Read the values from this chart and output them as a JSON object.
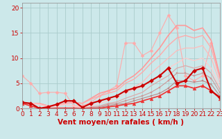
{
  "bg_color": "#cce8ea",
  "grid_color": "#aacccc",
  "xlabel": "Vent moyen/en rafales ( km/h )",
  "xlim": [
    0,
    23
  ],
  "ylim": [
    0,
    21
  ],
  "yticks": [
    0,
    5,
    10,
    15,
    20
  ],
  "xticks": [
    0,
    1,
    2,
    3,
    4,
    5,
    6,
    7,
    8,
    9,
    10,
    11,
    12,
    13,
    14,
    15,
    16,
    17,
    18,
    19,
    20,
    21,
    22,
    23
  ],
  "lines": [
    {
      "x": [
        0,
        1,
        2,
        3,
        4,
        5,
        6,
        7,
        8,
        9,
        10,
        11,
        12,
        13,
        14,
        15,
        16,
        17,
        18,
        19,
        20,
        21,
        22,
        23
      ],
      "y": [
        6.5,
        5.0,
        3.0,
        3.2,
        3.2,
        3.0,
        0.5,
        0.5,
        1.2,
        2.5,
        3.5,
        4.5,
        13.0,
        13.0,
        10.5,
        11.5,
        15.0,
        18.5,
        16.0,
        6.5,
        5.5,
        6.5,
        13.0,
        6.5
      ],
      "color": "#ffaaaa",
      "marker": "D",
      "lw": 0.8,
      "ms": 2.5
    },
    {
      "x": [
        0,
        1,
        2,
        3,
        4,
        5,
        6,
        7,
        8,
        9,
        10,
        11,
        12,
        13,
        14,
        15,
        16,
        17,
        18,
        19,
        20,
        21,
        22,
        23
      ],
      "y": [
        1.0,
        1.0,
        1.0,
        0.5,
        0.7,
        1.0,
        1.2,
        1.0,
        2.0,
        3.0,
        3.5,
        4.0,
        5.5,
        6.5,
        8.0,
        10.0,
        12.0,
        14.5,
        16.5,
        16.5,
        15.5,
        16.0,
        13.5,
        6.5
      ],
      "color": "#ff9999",
      "marker": null,
      "lw": 1.2,
      "ms": 0
    },
    {
      "x": [
        0,
        1,
        2,
        3,
        4,
        5,
        6,
        7,
        8,
        9,
        10,
        11,
        12,
        13,
        14,
        15,
        16,
        17,
        18,
        19,
        20,
        21,
        22,
        23
      ],
      "y": [
        1.0,
        1.0,
        1.0,
        0.5,
        0.7,
        1.0,
        1.2,
        1.0,
        1.8,
        2.5,
        3.0,
        3.5,
        5.0,
        5.8,
        7.2,
        9.0,
        10.5,
        12.5,
        14.0,
        14.5,
        14.0,
        14.5,
        12.0,
        6.0
      ],
      "color": "#ffaaaa",
      "marker": null,
      "lw": 1.0,
      "ms": 0
    },
    {
      "x": [
        0,
        1,
        2,
        3,
        4,
        5,
        6,
        7,
        8,
        9,
        10,
        11,
        12,
        13,
        14,
        15,
        16,
        17,
        18,
        19,
        20,
        21,
        22,
        23
      ],
      "y": [
        1.0,
        1.0,
        0.8,
        0.3,
        0.5,
        0.8,
        0.5,
        0.3,
        1.0,
        1.5,
        2.0,
        2.5,
        3.5,
        4.2,
        5.2,
        7.0,
        8.5,
        10.0,
        11.5,
        12.0,
        12.0,
        12.5,
        10.0,
        5.2
      ],
      "color": "#ffbbbb",
      "marker": null,
      "lw": 0.9,
      "ms": 0
    },
    {
      "x": [
        0,
        1,
        2,
        3,
        4,
        5,
        6,
        7,
        8,
        9,
        10,
        11,
        12,
        13,
        14,
        15,
        16,
        17,
        18,
        19,
        20,
        21,
        22,
        23
      ],
      "y": [
        1.0,
        1.0,
        0.8,
        0.3,
        0.5,
        0.8,
        0.5,
        0.0,
        0.5,
        1.0,
        1.5,
        2.0,
        3.0,
        3.7,
        4.2,
        5.5,
        6.5,
        8.0,
        9.0,
        10.0,
        9.5,
        10.0,
        8.0,
        4.2
      ],
      "color": "#ffcccc",
      "marker": null,
      "lw": 0.9,
      "ms": 0
    },
    {
      "x": [
        0,
        1,
        2,
        3,
        4,
        5,
        6,
        7,
        8,
        9,
        10,
        11,
        12,
        13,
        14,
        15,
        16,
        17,
        18,
        19,
        20,
        21,
        22,
        23
      ],
      "y": [
        1.0,
        1.0,
        0.0,
        0.0,
        0.2,
        0.2,
        0.2,
        0.0,
        0.3,
        0.5,
        1.0,
        1.3,
        2.0,
        2.6,
        3.2,
        4.5,
        5.5,
        6.5,
        8.0,
        8.5,
        8.0,
        8.5,
        7.0,
        3.8
      ],
      "color": "#ddaaaa",
      "marker": null,
      "lw": 0.9,
      "ms": 0
    },
    {
      "x": [
        0,
        1,
        2,
        3,
        4,
        5,
        6,
        7,
        8,
        9,
        10,
        11,
        12,
        13,
        14,
        15,
        16,
        17,
        18,
        19,
        20,
        21,
        22,
        23
      ],
      "y": [
        1.0,
        1.0,
        0.0,
        0.0,
        0.0,
        0.0,
        0.0,
        0.0,
        0.2,
        0.3,
        0.8,
        1.0,
        1.5,
        2.0,
        2.5,
        3.2,
        4.2,
        5.5,
        7.0,
        7.0,
        6.5,
        7.0,
        6.0,
        3.2
      ],
      "color": "#cc9999",
      "marker": "s",
      "lw": 0.8,
      "ms": 2.0
    },
    {
      "x": [
        0,
        1,
        2,
        3,
        4,
        5,
        6,
        7,
        8,
        9,
        10,
        11,
        12,
        13,
        14,
        15,
        16,
        17,
        18,
        19,
        20,
        21,
        22,
        23
      ],
      "y": [
        1.0,
        1.0,
        0.0,
        0.0,
        0.0,
        0.0,
        0.0,
        0.0,
        0.0,
        0.2,
        0.5,
        0.8,
        1.0,
        1.5,
        2.0,
        2.5,
        3.0,
        4.0,
        5.5,
        5.5,
        5.2,
        5.5,
        4.8,
        2.5
      ],
      "color": "#bb8888",
      "marker": "s",
      "lw": 0.8,
      "ms": 2.0
    },
    {
      "x": [
        0,
        1,
        2,
        3,
        4,
        5,
        6,
        7,
        8,
        9,
        10,
        11,
        12,
        13,
        14,
        15,
        16,
        17,
        18,
        19,
        20,
        21,
        22,
        23
      ],
      "y": [
        1.0,
        0.5,
        0.0,
        0.0,
        0.0,
        0.0,
        0.0,
        0.0,
        0.0,
        0.0,
        0.3,
        0.5,
        0.8,
        1.0,
        1.5,
        2.0,
        2.5,
        3.5,
        4.5,
        4.5,
        4.0,
        4.5,
        3.5,
        2.0
      ],
      "color": "#ee3333",
      "marker": "^",
      "lw": 1.2,
      "ms": 3.5
    },
    {
      "x": [
        0,
        1,
        2,
        3,
        4,
        5,
        6,
        7,
        8,
        9,
        10,
        11,
        12,
        13,
        14,
        15,
        16,
        17,
        18,
        19,
        20,
        21,
        22,
        23
      ],
      "y": [
        1.2,
        1.0,
        0.0,
        0.3,
        0.8,
        1.5,
        1.5,
        0.2,
        1.0,
        1.5,
        2.0,
        2.5,
        3.5,
        4.0,
        4.5,
        5.5,
        6.5,
        8.0,
        5.0,
        5.5,
        7.5,
        8.0,
        3.5,
        2.2
      ],
      "color": "#cc0000",
      "marker": "D",
      "lw": 1.5,
      "ms": 3.0
    }
  ],
  "tick_color": "#cc0000",
  "label_color": "#cc0000",
  "axis_color": "#999999",
  "axis_fontsize": 6.5,
  "xlabel_fontsize": 7.5,
  "xlabel_bold": true
}
